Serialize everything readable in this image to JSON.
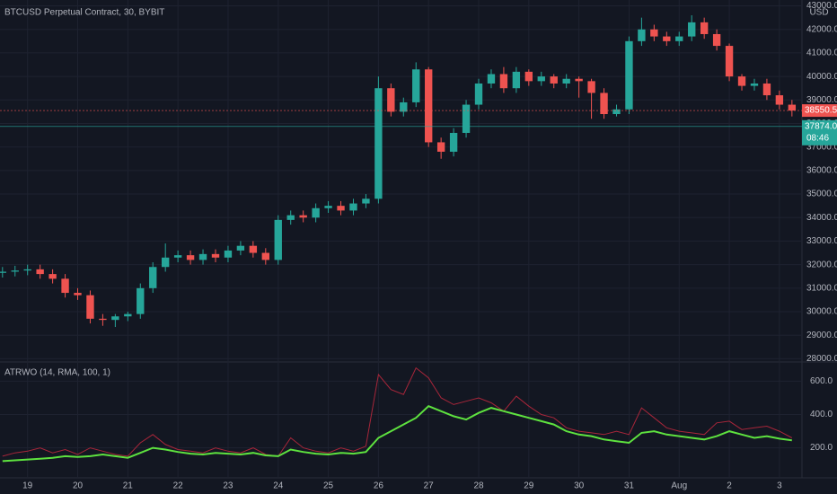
{
  "chart_data": [
    {
      "type": "candlestick",
      "title": "BTCUSD Perpetual Contract, 30, BYBIT",
      "currency": "USD",
      "up_color": "#26a69a",
      "down_color": "#ef5350",
      "grid": true,
      "x": [
        -0.5,
        -0.25,
        0,
        0.25,
        0.5,
        0.75,
        1,
        1.25,
        1.5,
        1.75,
        2,
        2.25,
        2.5,
        2.75,
        3,
        3.25,
        3.5,
        3.75,
        4,
        4.25,
        4.5,
        4.75,
        5,
        5.25,
        5.5,
        5.75,
        6,
        6.25,
        6.5,
        6.75,
        7,
        7.25,
        7.5,
        7.75,
        8,
        8.25,
        8.5,
        8.75,
        9,
        9.25,
        9.5,
        9.75,
        10,
        10.25,
        10.5,
        10.75,
        11,
        11.25,
        11.5,
        11.75,
        12,
        12.25,
        12.5,
        12.75,
        13,
        13.25,
        13.5,
        13.75,
        14,
        14.25,
        14.5,
        14.75,
        15,
        15.25
      ],
      "open": [
        31650,
        31700,
        31750,
        31800,
        31600,
        31400,
        30800,
        30700,
        29700,
        29650,
        29800,
        29900,
        31000,
        31900,
        32300,
        32400,
        32200,
        32450,
        32300,
        32600,
        32800,
        32500,
        32200,
        33900,
        34100,
        34000,
        34400,
        34500,
        34300,
        34600,
        34800,
        39500,
        38500,
        38900,
        40300,
        37200,
        36800,
        37600,
        38800,
        39700,
        40100,
        39500,
        40200,
        39800,
        40000,
        39700,
        39900,
        39800,
        39300,
        38400,
        38600,
        41500,
        42000,
        41700,
        41500,
        41700,
        42300,
        41800,
        41300,
        40000,
        39600,
        39700,
        39200,
        38800
      ],
      "high": [
        31900,
        31950,
        32000,
        32000,
        31800,
        31600,
        31000,
        30900,
        29900,
        29900,
        30000,
        31200,
        32100,
        32900,
        32600,
        32600,
        32650,
        32650,
        32800,
        33000,
        33000,
        32700,
        34100,
        34300,
        34300,
        34600,
        34700,
        34700,
        34800,
        35000,
        40000,
        39700,
        39100,
        40600,
        40400,
        37400,
        37800,
        39000,
        39900,
        40300,
        40400,
        40400,
        40300,
        40200,
        40100,
        40100,
        40000,
        39900,
        39500,
        38800,
        41700,
        42500,
        42200,
        41900,
        41900,
        42600,
        42500,
        42000,
        41400,
        40100,
        39900,
        39900,
        39400,
        39000
      ],
      "low": [
        31450,
        31500,
        31550,
        31400,
        31200,
        30600,
        30500,
        29500,
        29400,
        29350,
        29600,
        29700,
        30800,
        31700,
        32100,
        32000,
        32000,
        32100,
        32100,
        32400,
        32300,
        32000,
        32000,
        33700,
        33800,
        33800,
        34200,
        34100,
        34100,
        34400,
        34600,
        38300,
        38300,
        38700,
        37000,
        36500,
        36600,
        37400,
        38600,
        39500,
        39300,
        39300,
        39600,
        39600,
        39500,
        39500,
        39100,
        38200,
        38200,
        38300,
        38400,
        41300,
        41500,
        41300,
        41300,
        41500,
        41600,
        41100,
        39800,
        39400,
        39400,
        39000,
        38600,
        38300
      ],
      "close": [
        31700,
        31750,
        31800,
        31600,
        31400,
        30800,
        30700,
        29700,
        29650,
        29800,
        29900,
        31000,
        31900,
        32300,
        32400,
        32200,
        32450,
        32300,
        32600,
        32800,
        32500,
        32200,
        33900,
        34100,
        34000,
        34400,
        34500,
        34300,
        34600,
        34800,
        39500,
        38500,
        38900,
        40300,
        37200,
        36800,
        37600,
        38800,
        39700,
        40100,
        39500,
        40200,
        39800,
        40000,
        39700,
        39900,
        39800,
        39300,
        38400,
        38600,
        41500,
        42000,
        41700,
        41500,
        41700,
        42300,
        41800,
        41300,
        40000,
        39600,
        39700,
        39200,
        38800,
        38550.5
      ],
      "ylim": [
        27900,
        43250
      ],
      "yticks": [
        {
          "value": 28000,
          "label": "28000.0"
        },
        {
          "value": 29000,
          "label": "29000.0"
        },
        {
          "value": 30000,
          "label": "30000.0"
        },
        {
          "value": 31000,
          "label": "31000.0"
        },
        {
          "value": 32000,
          "label": "32000.0"
        },
        {
          "value": 33000,
          "label": "33000.0"
        },
        {
          "value": 34000,
          "label": "34000.0"
        },
        {
          "value": 35000,
          "label": "35000.0"
        },
        {
          "value": 36000,
          "label": "36000.0"
        },
        {
          "value": 37000,
          "label": "37000.0"
        },
        {
          "value": 38000,
          "label": "38000.0"
        },
        {
          "value": 39000,
          "label": "39000.0"
        },
        {
          "value": 40000,
          "label": "40000.0"
        },
        {
          "value": 41000,
          "label": "41000.0"
        },
        {
          "value": 42000,
          "label": "42000.0"
        },
        {
          "value": 43000,
          "label": "43000.0"
        }
      ],
      "xlim": [
        -0.55,
        15.45
      ],
      "xticks": [
        {
          "value": 0,
          "label": "19"
        },
        {
          "value": 1,
          "label": "20"
        },
        {
          "value": 2,
          "label": "21"
        },
        {
          "value": 3,
          "label": "22"
        },
        {
          "value": 4,
          "label": "23"
        },
        {
          "value": 5,
          "label": "24"
        },
        {
          "value": 6,
          "label": "25"
        },
        {
          "value": 7,
          "label": "26"
        },
        {
          "value": 8,
          "label": "27"
        },
        {
          "value": 9,
          "label": "28"
        },
        {
          "value": 10,
          "label": "29"
        },
        {
          "value": 11,
          "label": "30"
        },
        {
          "value": 12,
          "label": "31"
        },
        {
          "value": 13,
          "label": "Aug"
        },
        {
          "value": 14,
          "label": "2"
        },
        {
          "value": 15,
          "label": "3"
        }
      ],
      "price_labels": [
        {
          "value": 38550.5,
          "label": "38550.5",
          "color": "#ef5350"
        },
        {
          "value": 37874,
          "label": "37874.0",
          "color": "#26a69a"
        }
      ],
      "countdown": "08:46"
    },
    {
      "type": "line",
      "title": "ATRWO (14, RMA, 100, 1)",
      "grid": true,
      "x": [
        -0.5,
        -0.25,
        0,
        0.25,
        0.5,
        0.75,
        1,
        1.25,
        1.5,
        1.75,
        2,
        2.25,
        2.5,
        2.75,
        3,
        3.25,
        3.5,
        3.75,
        4,
        4.25,
        4.5,
        4.75,
        5,
        5.25,
        5.5,
        5.75,
        6,
        6.25,
        6.5,
        6.75,
        7,
        7.25,
        7.5,
        7.75,
        8,
        8.25,
        8.5,
        8.75,
        9,
        9.25,
        9.5,
        9.75,
        10,
        10.25,
        10.5,
        10.75,
        11,
        11.25,
        11.5,
        11.75,
        12,
        12.25,
        12.5,
        12.75,
        13,
        13.25,
        13.5,
        13.75,
        14,
        14.25,
        14.5,
        14.75,
        15,
        15.25
      ],
      "series": [
        {
          "color": "#a8263a",
          "values": [
            150,
            170,
            180,
            200,
            170,
            190,
            160,
            200,
            180,
            160,
            150,
            230,
            280,
            220,
            190,
            180,
            170,
            200,
            180,
            170,
            200,
            160,
            150,
            260,
            200,
            180,
            170,
            200,
            180,
            210,
            640,
            550,
            520,
            680,
            620,
            500,
            460,
            480,
            500,
            470,
            420,
            510,
            450,
            400,
            380,
            320,
            300,
            290,
            280,
            300,
            280,
            440,
            380,
            320,
            300,
            290,
            280,
            350,
            360,
            310,
            320,
            330,
            300,
            260
          ]
        },
        {
          "color": "#5ee23f",
          "values": [
            120,
            125,
            130,
            135,
            140,
            150,
            145,
            150,
            160,
            150,
            140,
            170,
            200,
            190,
            175,
            165,
            160,
            170,
            165,
            160,
            170,
            155,
            150,
            190,
            175,
            165,
            160,
            170,
            165,
            175,
            260,
            300,
            340,
            380,
            450,
            420,
            390,
            370,
            410,
            440,
            420,
            400,
            380,
            360,
            340,
            300,
            280,
            270,
            250,
            240,
            230,
            290,
            300,
            280,
            270,
            260,
            250,
            270,
            300,
            280,
            260,
            270,
            255,
            245
          ]
        }
      ],
      "ylim": [
        20,
        710
      ],
      "yticks": [
        {
          "value": 200,
          "label": "200.0"
        },
        {
          "value": 400,
          "label": "400.0"
        },
        {
          "value": 600,
          "label": "600.0"
        }
      ]
    }
  ]
}
